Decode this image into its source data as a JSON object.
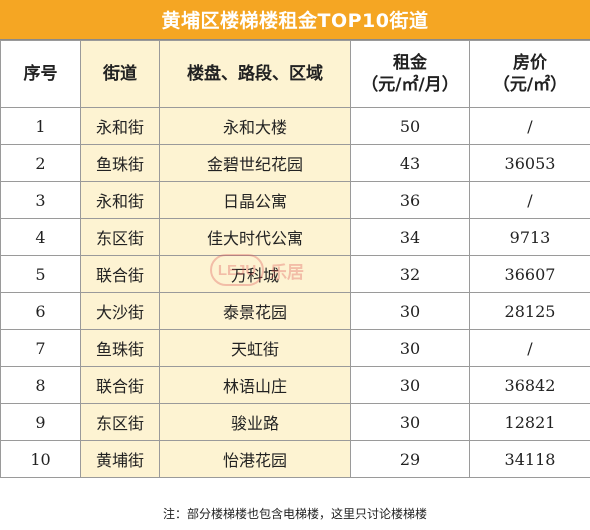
{
  "title": "黄埔区楼梯楼租金TOP10街道",
  "columns": {
    "no": "序号",
    "street": "街道",
    "property": "楼盘、路段、区域",
    "rent_line1": "租金",
    "rent_line2": "（元/㎡/月）",
    "price_line1": "房价",
    "price_line2": "（元/㎡）"
  },
  "rows": [
    {
      "no": "1",
      "street": "永和街",
      "property": "永和大楼",
      "rent": "50",
      "price": "/"
    },
    {
      "no": "2",
      "street": "鱼珠街",
      "property": "金碧世纪花园",
      "rent": "43",
      "price": "36053"
    },
    {
      "no": "3",
      "street": "永和街",
      "property": "日晶公寓",
      "rent": "36",
      "price": "/"
    },
    {
      "no": "4",
      "street": "东区街",
      "property": "佳大时代公寓",
      "rent": "34",
      "price": "9713"
    },
    {
      "no": "5",
      "street": "联合街",
      "property": "万科城",
      "rent": "32",
      "price": "36607"
    },
    {
      "no": "6",
      "street": "大沙街",
      "property": "泰景花园",
      "rent": "30",
      "price": "28125"
    },
    {
      "no": "7",
      "street": "鱼珠街",
      "property": "天虹街",
      "rent": "30",
      "price": "/"
    },
    {
      "no": "8",
      "street": "联合街",
      "property": "林语山庄",
      "rent": "30",
      "price": "36842"
    },
    {
      "no": "9",
      "street": "东区街",
      "property": "骏业路",
      "rent": "30",
      "price": "12821"
    },
    {
      "no": "10",
      "street": "黄埔街",
      "property": "怡港花园",
      "rent": "29",
      "price": "34118"
    }
  ],
  "footnote": "注：部分楼梯楼也包含电梯楼，这里只讨论楼梯楼",
  "watermark": {
    "badge": "LEJU",
    "text": "乐居"
  },
  "colors": {
    "title_bg": "#f5a623",
    "title_text": "#ffffff",
    "highlight_col": "#fdf3d2",
    "border": "#9a9a9a"
  }
}
